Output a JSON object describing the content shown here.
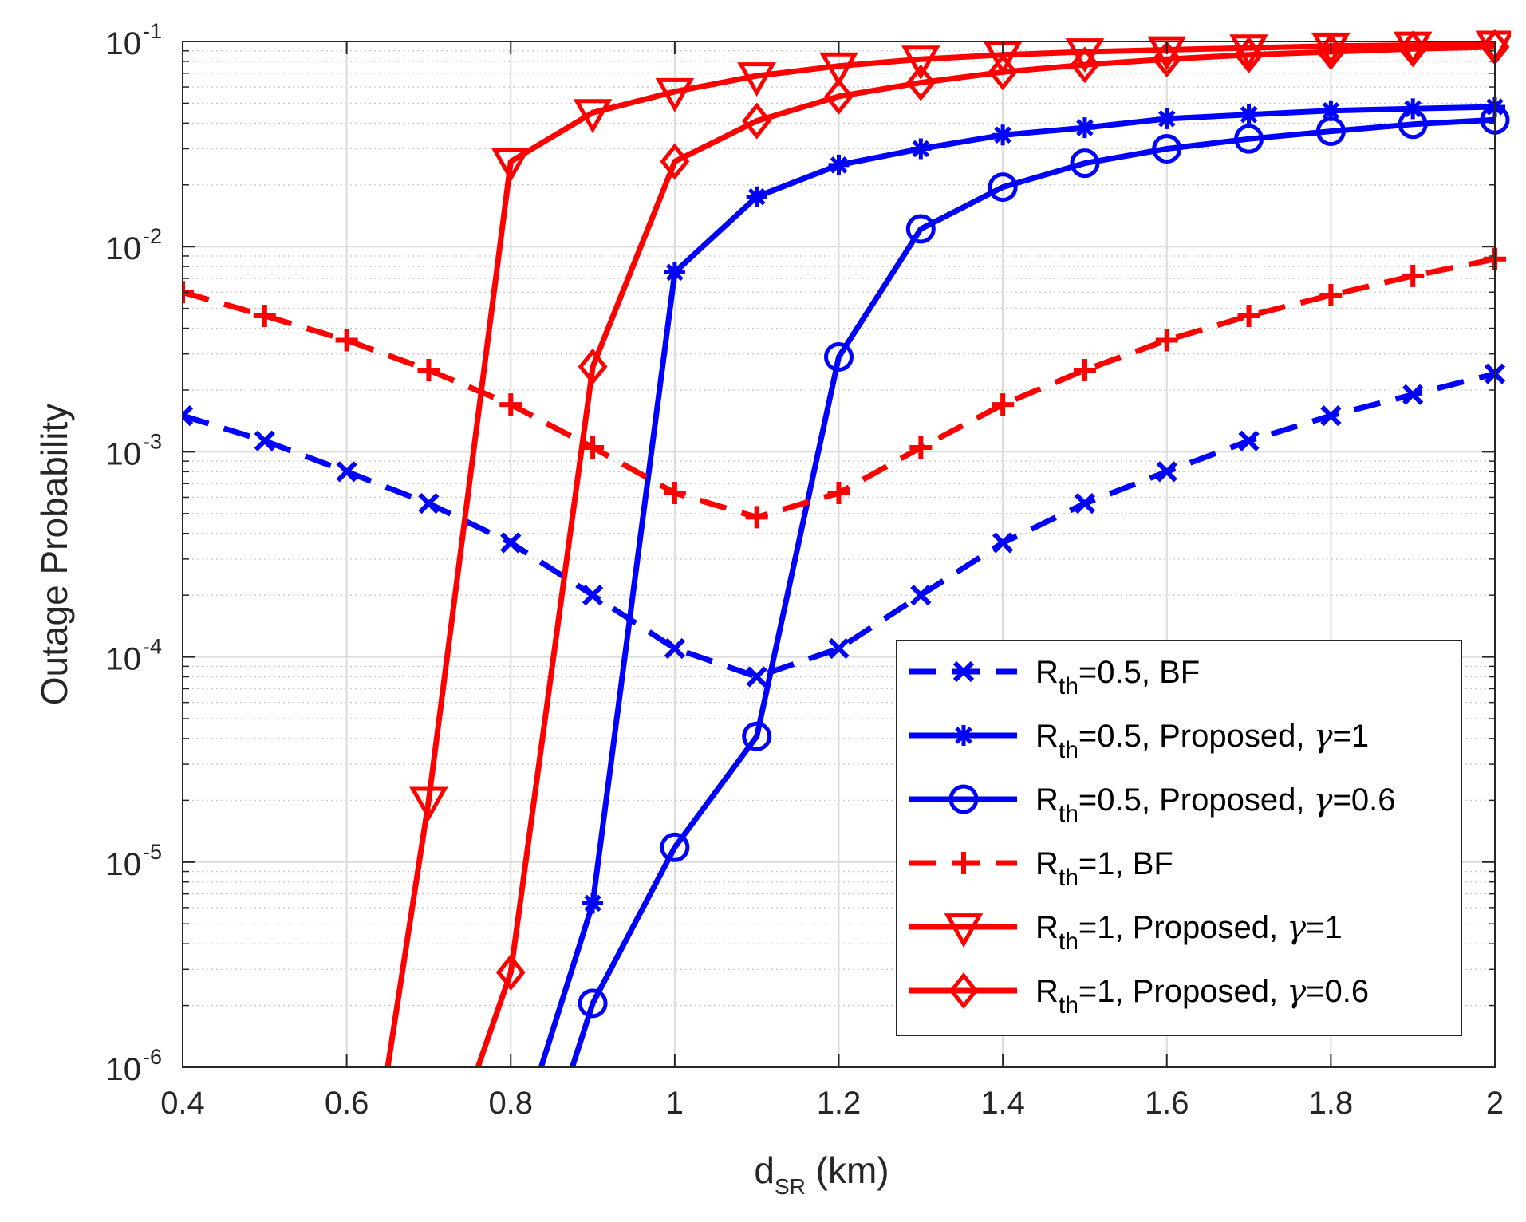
{
  "chart_data": {
    "type": "line",
    "xlabel_main": "d",
    "xlabel_sub": "SR",
    "xlabel_unit": " (km)",
    "ylabel": "Outage Probability",
    "xlim": [
      0.4,
      2
    ],
    "ylim": [
      1e-06,
      0.1
    ],
    "yscale": "log",
    "grid": true,
    "legend_position": "bottom-right",
    "x_ticks": [
      "0.4",
      "0.6",
      "0.8",
      "1",
      "1.2",
      "1.4",
      "1.6",
      "1.8",
      "2"
    ],
    "y_ticks": [
      {
        "base": "10",
        "exp": "-6"
      },
      {
        "base": "10",
        "exp": "-5"
      },
      {
        "base": "10",
        "exp": "-4"
      },
      {
        "base": "10",
        "exp": "-3"
      },
      {
        "base": "10",
        "exp": "-2"
      },
      {
        "base": "10",
        "exp": "-1"
      }
    ],
    "x": [
      0.4,
      0.5,
      0.6,
      0.7,
      0.8,
      0.9,
      1.0,
      1.1,
      1.2,
      1.3,
      1.4,
      1.5,
      1.6,
      1.7,
      1.8,
      1.9,
      2.0
    ],
    "series": [
      {
        "name": "Rth=0.5, BF",
        "legend": {
          "pre": "R",
          "sub": "th",
          "text": "=0.5, BF"
        },
        "color": "#0000ff",
        "dash": true,
        "marker": "x",
        "values": [
          0.0015,
          0.00113,
          0.0008,
          0.00056,
          0.00036,
          0.0002,
          0.00011,
          8e-05,
          0.00011,
          0.0002,
          0.00036,
          0.00056,
          0.0008,
          0.00113,
          0.0015,
          0.0019,
          0.0024
        ]
      },
      {
        "name": "Rth=0.5, Proposed, gamma=1",
        "legend": {
          "pre": "R",
          "sub": "th",
          "text": "=0.5, Proposed, ",
          "greek": "γ",
          "tail": "=1"
        },
        "color": "#0000ff",
        "dash": false,
        "marker": "asterisk",
        "values": [
          null,
          null,
          null,
          null,
          null,
          6.3e-06,
          0.0075,
          0.0175,
          0.025,
          0.03,
          0.035,
          0.038,
          0.042,
          0.044,
          0.046,
          0.047,
          0.048
        ],
        "lead_in": {
          "x": 0.837,
          "y": 1e-06
        }
      },
      {
        "name": "Rth=0.5, Proposed, gamma=0.6",
        "legend": {
          "pre": "R",
          "sub": "th",
          "text": "=0.5, Proposed, ",
          "greek": "γ",
          "tail": "=0.6"
        },
        "color": "#0000ff",
        "dash": false,
        "marker": "circle",
        "values": [
          null,
          null,
          null,
          null,
          null,
          2.05e-06,
          1.18e-05,
          4.1e-05,
          0.0029,
          0.0122,
          0.0195,
          0.0255,
          0.03,
          0.0335,
          0.0365,
          0.0395,
          0.0415
        ],
        "lead_in": {
          "x": 0.875,
          "y": 1e-06
        }
      },
      {
        "name": "Rth=1, BF",
        "legend": {
          "pre": "R",
          "sub": "th",
          "text": "=1, BF"
        },
        "color": "#ff0000",
        "dash": true,
        "marker": "plus",
        "values": [
          0.006,
          0.0046,
          0.0035,
          0.0025,
          0.0017,
          0.00105,
          0.00063,
          0.00048,
          0.00063,
          0.00105,
          0.0017,
          0.0025,
          0.0035,
          0.0046,
          0.0058,
          0.0072,
          0.0087
        ]
      },
      {
        "name": "Rth=1, Proposed, gamma=1",
        "legend": {
          "pre": "R",
          "sub": "th",
          "text": "=1, Proposed, ",
          "greek": "γ",
          "tail": "=1"
        },
        "color": "#ff0000",
        "dash": false,
        "marker": "triangle-down",
        "values": [
          null,
          null,
          null,
          2e-05,
          0.026,
          0.045,
          0.057,
          0.068,
          0.076,
          0.082,
          0.086,
          0.089,
          0.091,
          0.093,
          0.095,
          0.096,
          0.097
        ],
        "lead_in": {
          "x": 0.65,
          "y": 1e-06
        }
      },
      {
        "name": "Rth=1, Proposed, gamma=0.6",
        "legend": {
          "pre": "R",
          "sub": "th",
          "text": "=1, Proposed, ",
          "greek": "γ",
          "tail": "=0.6"
        },
        "color": "#ff0000",
        "dash": false,
        "marker": "diamond",
        "values": [
          null,
          null,
          null,
          null,
          2.9e-06,
          0.0026,
          0.026,
          0.041,
          0.054,
          0.063,
          0.071,
          0.077,
          0.082,
          0.086,
          0.089,
          0.092,
          0.094
        ],
        "lead_in": {
          "x": 0.76,
          "y": 1e-06
        }
      }
    ]
  }
}
